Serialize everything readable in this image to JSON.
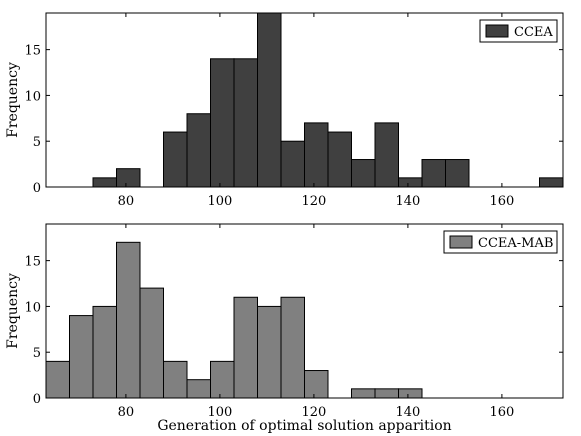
{
  "chart_data": [
    {
      "type": "bar",
      "subtype": "histogram",
      "legend": {
        "label": "CCEA",
        "placement": "top-right"
      },
      "color": "#404040",
      "bin_width": 5,
      "xlim": [
        63,
        173
      ],
      "ylim": [
        0,
        19
      ],
      "xticks": [
        80,
        100,
        120,
        140,
        160
      ],
      "yticks": [
        0,
        5,
        10,
        15
      ],
      "ylabel": "Frequency",
      "xlabel": "",
      "bins": [
        {
          "x": 73,
          "value": 1
        },
        {
          "x": 78,
          "value": 2
        },
        {
          "x": 88,
          "value": 6
        },
        {
          "x": 93,
          "value": 8
        },
        {
          "x": 98,
          "value": 14
        },
        {
          "x": 103,
          "value": 14
        },
        {
          "x": 108,
          "value": 19
        },
        {
          "x": 113,
          "value": 5
        },
        {
          "x": 118,
          "value": 7
        },
        {
          "x": 123,
          "value": 6
        },
        {
          "x": 128,
          "value": 3
        },
        {
          "x": 133,
          "value": 7
        },
        {
          "x": 138,
          "value": 1
        },
        {
          "x": 143,
          "value": 3
        },
        {
          "x": 148,
          "value": 3
        },
        {
          "x": 168,
          "value": 1
        }
      ]
    },
    {
      "type": "bar",
      "subtype": "histogram",
      "legend": {
        "label": "CCEA-MAB",
        "placement": "top-right"
      },
      "color": "#808080",
      "bin_width": 5,
      "xlim": [
        63,
        173
      ],
      "ylim": [
        0,
        19
      ],
      "xticks": [
        80,
        100,
        120,
        140,
        160
      ],
      "yticks": [
        0,
        5,
        10,
        15
      ],
      "ylabel": "Frequency",
      "xlabel": "Generation of optimal solution apparition",
      "bins": [
        {
          "x": 63,
          "value": 4
        },
        {
          "x": 68,
          "value": 9
        },
        {
          "x": 73,
          "value": 10
        },
        {
          "x": 78,
          "value": 17
        },
        {
          "x": 83,
          "value": 12
        },
        {
          "x": 88,
          "value": 4
        },
        {
          "x": 93,
          "value": 2
        },
        {
          "x": 98,
          "value": 4
        },
        {
          "x": 103,
          "value": 11
        },
        {
          "x": 108,
          "value": 10
        },
        {
          "x": 113,
          "value": 11
        },
        {
          "x": 118,
          "value": 3
        },
        {
          "x": 128,
          "value": 1
        },
        {
          "x": 133,
          "value": 1
        },
        {
          "x": 138,
          "value": 1
        }
      ]
    }
  ]
}
